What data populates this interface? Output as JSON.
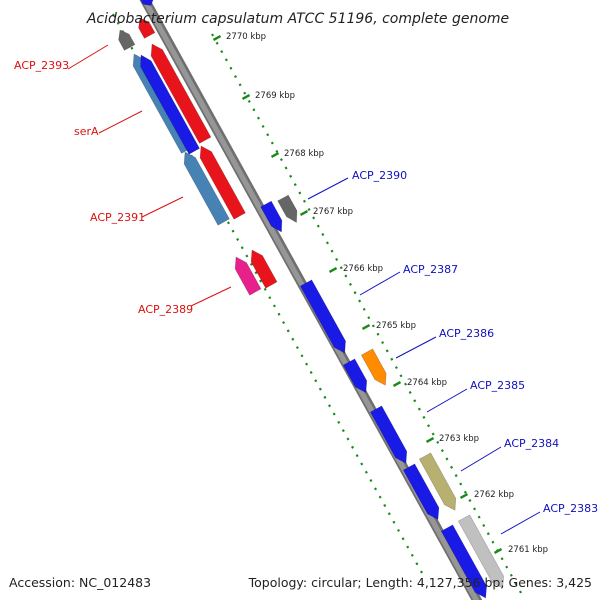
{
  "header": {
    "title": "Acidobacterium capsulatum ATCC 51196, complete genome"
  },
  "footer": {
    "accession": "Accession: NC_012483",
    "topology": "Topology: circular; Length: 4,127,356 bp; Genes: 3,425"
  },
  "ticks": [
    "2770 kbp",
    "2769 kbp",
    "2768 kbp",
    "2767 kbp",
    "2766 kbp",
    "2765 kbp",
    "2764 kbp",
    "2763 kbp",
    "2762 kbp",
    "2761 kbp"
  ],
  "labels_reverse": [
    "ACP_2393",
    "serA",
    "ACP_2391",
    "ACP_2389"
  ],
  "labels_forward": [
    "ACP_2390",
    "ACP_2387",
    "ACP_2386",
    "ACP_2385",
    "ACP_2384",
    "ACP_2383"
  ],
  "colors": {
    "backbone": "#888888",
    "tick_green": "#1a8a1a",
    "forward_label": "#1010c0",
    "reverse_label": "#dd1010",
    "blue": "#1a1ae6",
    "red": "#e8141c",
    "steel": "#4682b4",
    "gray": "#666666",
    "pink": "#e8208c",
    "orange": "#ff8c00",
    "khaki": "#b8b070",
    "silver": "#c0c0c0"
  }
}
